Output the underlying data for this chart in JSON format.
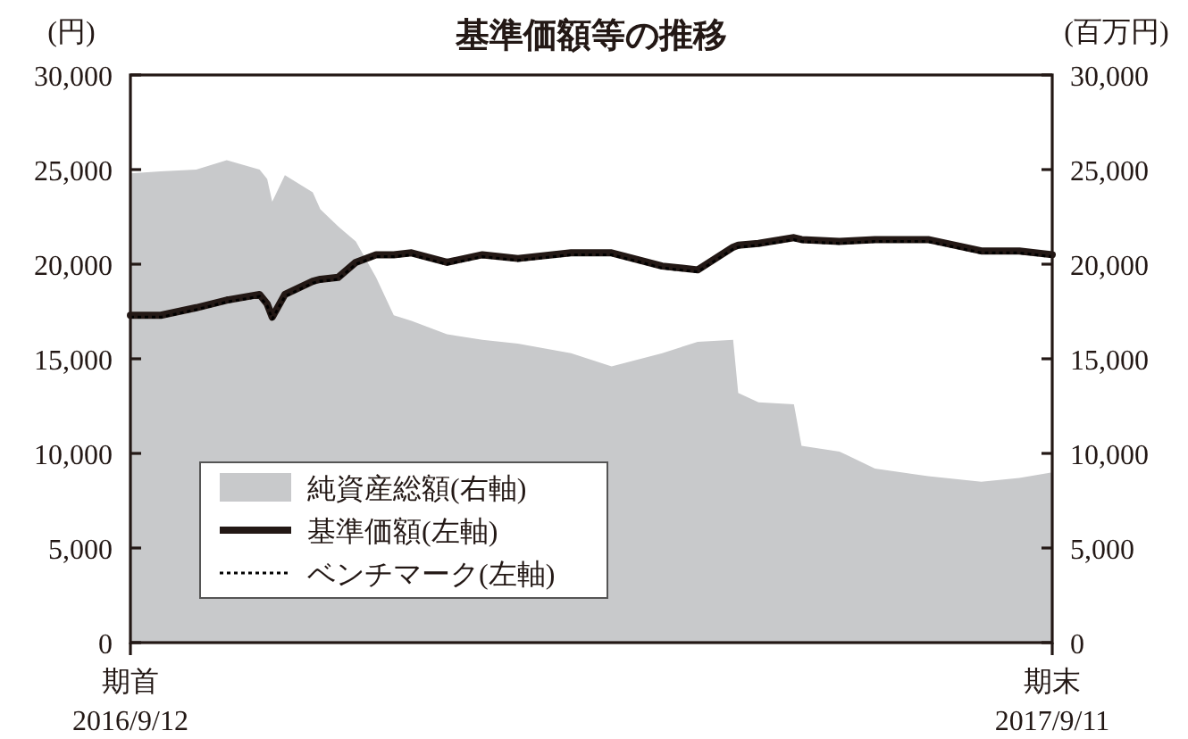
{
  "chart_data": {
    "type": "line",
    "title": "基準価額等の推移",
    "ylabel": "(円)",
    "y2label": "(百万円)",
    "x": [
      "2016-09-12",
      "2016-09-24",
      "2016-10-08",
      "2016-10-20",
      "2016-11-02",
      "2016-11-05",
      "2016-11-07",
      "2016-11-12",
      "2016-11-23",
      "2016-11-26",
      "2016-12-03",
      "2016-12-10",
      "2016-12-18",
      "2016-12-25",
      "2017-01-01",
      "2017-01-15",
      "2017-01-29",
      "2017-02-12",
      "2017-03-05",
      "2017-03-21",
      "2017-04-10",
      "2017-04-24",
      "2017-05-08",
      "2017-05-10",
      "2017-05-18",
      "2017-06-01",
      "2017-06-04",
      "2017-06-19",
      "2017-07-03",
      "2017-07-24",
      "2017-08-14",
      "2017-08-29",
      "2017-09-11"
    ],
    "series": [
      {
        "name": "純資産総額(右軸)",
        "type": "area",
        "color": "#c8c9cb",
        "values": [
          24800,
          24900,
          25000,
          25500,
          25000,
          24500,
          23300,
          24700,
          23800,
          22900,
          22000,
          21200,
          19300,
          17300,
          17000,
          16300,
          16000,
          15800,
          15300,
          14600,
          15300,
          15900,
          16000,
          13200,
          12700,
          12600,
          10400,
          10100,
          9200,
          8800,
          8500,
          8700,
          9000
        ]
      },
      {
        "name": "基準価額(左軸)",
        "type": "line",
        "color": "#231815",
        "line_style": "solid",
        "values": [
          17300,
          17300,
          17700,
          18100,
          18400,
          17900,
          17200,
          18400,
          19100,
          19200,
          19300,
          20100,
          20500,
          20500,
          20600,
          20100,
          20500,
          20300,
          20600,
          20600,
          19900,
          19700,
          20900,
          21000,
          21100,
          21400,
          21300,
          21200,
          21300,
          21300,
          20700,
          20700,
          20500
        ]
      },
      {
        "name": "ベンチマーク(左軸)",
        "type": "line",
        "color": "#000000",
        "line_style": "dotted",
        "values": [
          17200,
          17200,
          17600,
          18000,
          18300,
          17800,
          17100,
          18300,
          19000,
          19100,
          19200,
          20000,
          20400,
          20400,
          20500,
          20000,
          20400,
          20200,
          20500,
          20500,
          19800,
          19600,
          20800,
          20900,
          21000,
          21300,
          21200,
          21100,
          21200,
          21200,
          20600,
          20600,
          20400
        ]
      }
    ],
    "xlim": [
      "2016-09-12",
      "2017-09-11"
    ],
    "xticks": [
      {
        "value": "2016-09-12",
        "label": "期首\n2016/9/12"
      },
      {
        "value": "2017-09-11",
        "label": "期末\n2017/9/11"
      }
    ],
    "ylim": [
      0,
      30000
    ],
    "yticks": [
      {
        "value": 0,
        "label": "0"
      },
      {
        "value": 5000,
        "label": "5,000"
      },
      {
        "value": 10000,
        "label": "10,000"
      },
      {
        "value": 15000,
        "label": "15,000"
      },
      {
        "value": 20000,
        "label": "20,000"
      },
      {
        "value": 25000,
        "label": "25,000"
      },
      {
        "value": 30000,
        "label": "30,000"
      }
    ],
    "y2lim": [
      0,
      30000
    ],
    "y2ticks": [
      {
        "value": 0,
        "label": "0"
      },
      {
        "value": 5000,
        "label": "5,000"
      },
      {
        "value": 10000,
        "label": "10,000"
      },
      {
        "value": 15000,
        "label": "15,000"
      },
      {
        "value": 20000,
        "label": "20,000"
      },
      {
        "value": 25000,
        "label": "25,000"
      },
      {
        "value": 30000,
        "label": "30,000"
      }
    ],
    "legend": "bottom left"
  }
}
